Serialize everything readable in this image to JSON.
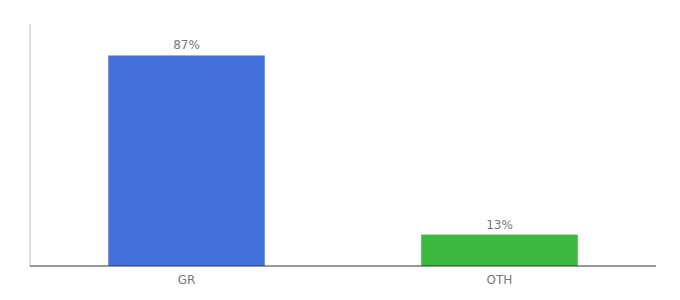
{
  "chart_data": {
    "type": "bar",
    "categories": [
      "GR",
      "OTH"
    ],
    "values": [
      87,
      13
    ],
    "value_labels": [
      "87%",
      "13%"
    ],
    "colors": [
      "#4472db",
      "#3cb83c"
    ],
    "ylim": [
      0,
      100
    ],
    "tick_labels": "x",
    "data_labels": true
  }
}
